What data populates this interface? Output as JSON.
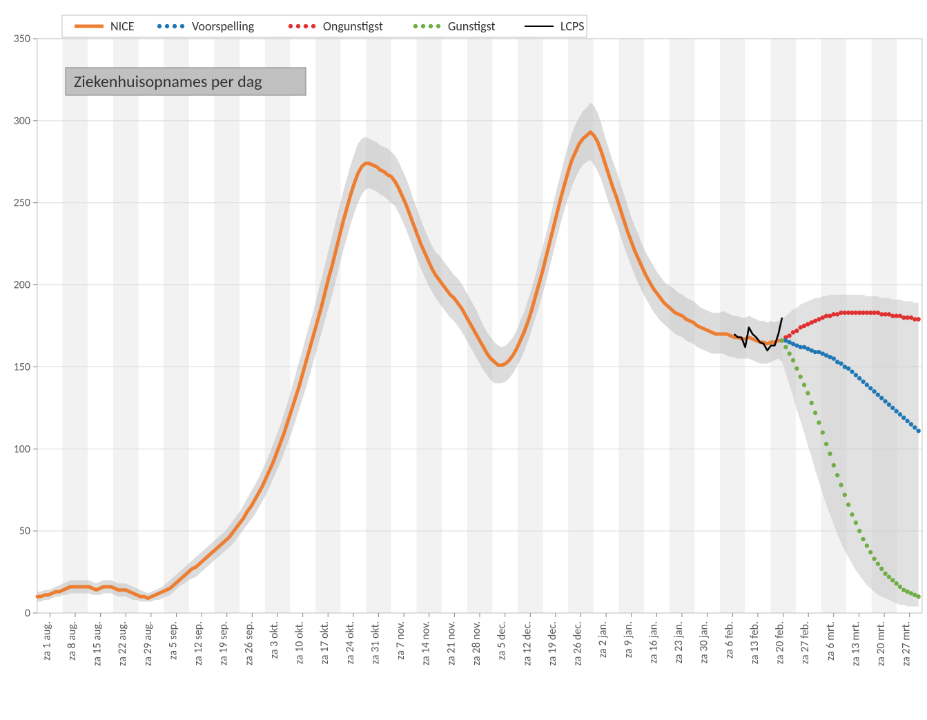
{
  "chart": {
    "type": "line",
    "title": "Ziekenhuisopnames per dag",
    "title_fontsize": 24,
    "background_color": "#ffffff",
    "plot_background_stripes": true,
    "stripe_color": "#f2f2f2",
    "grid_color": "#d9d9d9",
    "border_color": "#bfbfbf",
    "axis_label_color": "#595959",
    "axis_label_fontsize": 16,
    "ylim": [
      0,
      350
    ],
    "ytick_step": 50,
    "y_ticks": [
      0,
      50,
      100,
      150,
      200,
      250,
      300,
      350
    ],
    "x_labels": [
      "za 1 aug.",
      "za 8 aug.",
      "za 15 aug.",
      "za 22 aug.",
      "za 29 aug.",
      "za 5 sep.",
      "za 12 sep.",
      "za 19 sep.",
      "za 26 sep.",
      "za 3 okt.",
      "za 10 okt.",
      "za 17 okt.",
      "za 24 okt.",
      "za 31 okt.",
      "za 7 nov.",
      "za 14 nov.",
      "za 21 nov.",
      "za 28 nov.",
      "za 5 dec.",
      "za 12 dec.",
      "za 19 dec.",
      "za 26 dec.",
      "za 2 jan.",
      "za 9 jan.",
      "za 16 jan.",
      "za 23 jan.",
      "za 30 jan.",
      "za 6 feb.",
      "za 13 feb.",
      "za 20 feb.",
      "za 27 feb.",
      "za 6 mrt.",
      "za 13 mrt.",
      "za 20 mrt.",
      "za 27 mrt."
    ],
    "legend": {
      "items": [
        {
          "label": "NICE",
          "color": "#ed7d31",
          "style": "solid",
          "width": 5
        },
        {
          "label": "Voorspelling",
          "color": "#1f77b4",
          "style": "dotted",
          "width": 6
        },
        {
          "label": "Ongunstigst",
          "color": "#e03030",
          "style": "dotted",
          "width": 6
        },
        {
          "label": "Gunstigst",
          "color": "#70ad47",
          "style": "dotted",
          "width": 6
        },
        {
          "label": "LCPS",
          "color": "#000000",
          "style": "solid",
          "width": 2
        }
      ],
      "label_fontsize": 18,
      "position": "top"
    },
    "series": {
      "nice_band_upper": [
        13,
        13,
        14,
        14,
        15,
        16,
        17,
        18,
        19,
        20,
        20,
        20,
        20,
        20,
        20,
        19,
        18,
        19,
        20,
        20,
        20,
        19,
        18,
        18,
        18,
        17,
        16,
        15,
        14,
        13,
        12,
        13,
        14,
        15,
        16,
        18,
        20,
        22,
        24,
        26,
        28,
        30,
        32,
        34,
        36,
        38,
        40,
        42,
        44,
        46,
        48,
        50,
        53,
        56,
        59,
        62,
        66,
        70,
        74,
        78,
        82,
        87,
        92,
        97,
        103,
        109,
        115,
        122,
        129,
        137,
        145,
        153,
        161,
        169,
        177,
        185,
        194,
        203,
        212,
        221,
        230,
        239,
        248,
        257,
        265,
        273,
        280,
        286,
        289,
        290,
        289,
        288,
        287,
        285,
        284,
        283,
        281,
        279,
        275,
        270,
        265,
        259,
        252,
        246,
        240,
        234,
        229,
        224,
        220,
        218,
        215,
        212,
        209,
        206,
        204,
        201,
        197,
        193,
        189,
        185,
        180,
        175,
        171,
        168,
        165,
        163,
        162,
        163,
        165,
        168,
        172,
        178,
        183,
        190,
        197,
        205,
        214,
        222,
        231,
        240,
        250,
        259,
        268,
        277,
        285,
        292,
        298,
        302,
        306,
        308,
        311,
        309,
        305,
        298,
        290,
        283,
        276,
        270,
        263,
        256,
        249,
        242,
        236,
        231,
        225,
        220,
        216,
        212,
        208,
        205,
        202,
        200,
        199,
        197,
        195,
        194,
        192,
        191,
        190,
        188,
        186,
        185,
        184,
        183,
        183,
        183,
        184,
        183,
        182,
        181,
        181,
        180,
        180,
        181,
        180,
        179,
        178,
        178,
        177,
        178,
        177,
        178,
        179
      ],
      "nice_band_lower": [
        7,
        7,
        8,
        8,
        9,
        10,
        10,
        11,
        11,
        12,
        12,
        12,
        12,
        12,
        12,
        11,
        11,
        11,
        12,
        12,
        12,
        11,
        10,
        10,
        10,
        9,
        8,
        8,
        7,
        7,
        7,
        7,
        8,
        8,
        9,
        10,
        11,
        13,
        15,
        17,
        18,
        20,
        21,
        22,
        24,
        26,
        28,
        30,
        32,
        34,
        36,
        38,
        40,
        42,
        45,
        48,
        51,
        54,
        57,
        60,
        64,
        68,
        72,
        77,
        82,
        87,
        92,
        98,
        104,
        110,
        117,
        124,
        131,
        138,
        146,
        154,
        162,
        170,
        178,
        186,
        194,
        203,
        212,
        221,
        229,
        237,
        244,
        250,
        255,
        258,
        259,
        258,
        257,
        255,
        254,
        252,
        250,
        248,
        244,
        239,
        234,
        228,
        222,
        216,
        210,
        205,
        200,
        196,
        192,
        189,
        186,
        183,
        180,
        178,
        175,
        172,
        168,
        164,
        160,
        156,
        152,
        148,
        145,
        142,
        140,
        140,
        140,
        141,
        143,
        146,
        150,
        154,
        159,
        165,
        172,
        179,
        186,
        194,
        202,
        211,
        220,
        229,
        238,
        246,
        253,
        260,
        265,
        270,
        273,
        275,
        276,
        273,
        269,
        264,
        257,
        250,
        244,
        238,
        231,
        224,
        218,
        212,
        206,
        201,
        196,
        192,
        188,
        184,
        181,
        178,
        176,
        174,
        172,
        170,
        169,
        168,
        166,
        165,
        164,
        162,
        161,
        160,
        159,
        158,
        158,
        158,
        158,
        157,
        156,
        156,
        155,
        155,
        155,
        155,
        154,
        153,
        152,
        152,
        152,
        153,
        154,
        155,
        153
      ],
      "nice": [
        10,
        10,
        11,
        11,
        12,
        13,
        13,
        14,
        15,
        16,
        16,
        16,
        16,
        16,
        16,
        15,
        14,
        15,
        16,
        16,
        16,
        15,
        14,
        14,
        14,
        13,
        12,
        11,
        10,
        10,
        9,
        10,
        11,
        12,
        13,
        14,
        15,
        17,
        19,
        21,
        23,
        25,
        27,
        28,
        30,
        32,
        34,
        36,
        38,
        40,
        42,
        44,
        46,
        49,
        52,
        55,
        58,
        62,
        65,
        69,
        73,
        77,
        82,
        87,
        92,
        98,
        104,
        110,
        117,
        124,
        131,
        138,
        146,
        154,
        162,
        170,
        178,
        186,
        195,
        204,
        212,
        221,
        230,
        239,
        247,
        255,
        262,
        268,
        272,
        274,
        274,
        273,
        272,
        270,
        269,
        267,
        266,
        263,
        259,
        254,
        249,
        243,
        237,
        231,
        225,
        220,
        215,
        210,
        206,
        203,
        200,
        197,
        194,
        192,
        189,
        186,
        182,
        178,
        174,
        170,
        166,
        162,
        158,
        155,
        153,
        151,
        151,
        152,
        154,
        157,
        161,
        166,
        171,
        177,
        184,
        192,
        200,
        208,
        217,
        226,
        235,
        244,
        253,
        261,
        269,
        276,
        281,
        286,
        289,
        291,
        293,
        291,
        287,
        281,
        274,
        267,
        260,
        254,
        247,
        240,
        233,
        227,
        221,
        216,
        211,
        206,
        202,
        198,
        195,
        192,
        189,
        187,
        185,
        183,
        182,
        181,
        179,
        178,
        177,
        175,
        174,
        173,
        172,
        171,
        170,
        170,
        170,
        170,
        169,
        168,
        168,
        167,
        167,
        168,
        167,
        166,
        165,
        165,
        164,
        165,
        165,
        166,
        166
      ],
      "lcps": [
        170,
        168,
        168,
        162,
        174,
        170,
        168,
        165,
        164,
        160,
        163,
        163,
        170,
        180
      ],
      "lcps_start_index": 189,
      "voorspelling": [
        166,
        166,
        165,
        164,
        163,
        162,
        162,
        161,
        160,
        159,
        159,
        158,
        157,
        156,
        155,
        153,
        152,
        150,
        149,
        147,
        145,
        143,
        141,
        139,
        137,
        135,
        133,
        131,
        129,
        127,
        125,
        123,
        121,
        119,
        117,
        115,
        113,
        111
      ],
      "voorspelling_start_index": 202,
      "ongunstigst": [
        166,
        168,
        169,
        171,
        172,
        174,
        175,
        176,
        177,
        178,
        179,
        180,
        181,
        181,
        182,
        182,
        183,
        183,
        183,
        183,
        183,
        183,
        183,
        183,
        183,
        183,
        183,
        182,
        182,
        182,
        181,
        181,
        181,
        180,
        180,
        180,
        179,
        179
      ],
      "ongunstigst_start_index": 202,
      "gunstigst": [
        166,
        162,
        158,
        154,
        149,
        144,
        139,
        134,
        128,
        122,
        116,
        110,
        103,
        97,
        90,
        84,
        78,
        72,
        66,
        60,
        55,
        50,
        45,
        41,
        37,
        33,
        30,
        27,
        24,
        22,
        20,
        18,
        16,
        14,
        13,
        12,
        11,
        10
      ],
      "gunstigst_start_index": 202,
      "forecast_band_upper": [
        179,
        181,
        183,
        185,
        186,
        188,
        189,
        190,
        191,
        192,
        192,
        193,
        193,
        194,
        194,
        194,
        194,
        194,
        194,
        194,
        194,
        194,
        194,
        193,
        193,
        193,
        193,
        192,
        192,
        192,
        191,
        191,
        191,
        190,
        190,
        190,
        189,
        189
      ],
      "forecast_band_lower": [
        153,
        146,
        139,
        132,
        124,
        117,
        110,
        102,
        95,
        87,
        80,
        73,
        66,
        60,
        54,
        48,
        43,
        38,
        34,
        30,
        26,
        23,
        20,
        17,
        15,
        13,
        11,
        10,
        9,
        8,
        7,
        6,
        5,
        5,
        4,
        4,
        4,
        4
      ],
      "forecast_band_start_index": 202
    },
    "colors": {
      "nice": "#ed7d31",
      "nice_band": "#bfbfbf",
      "voorspelling": "#1f77b4",
      "ongunstigst": "#e03030",
      "gunstigst": "#70ad47",
      "lcps": "#000000",
      "forecast_band": "#c8c8c8"
    },
    "line_widths": {
      "nice": 5,
      "lcps": 2.5,
      "dotted_radius": 3.2
    }
  }
}
